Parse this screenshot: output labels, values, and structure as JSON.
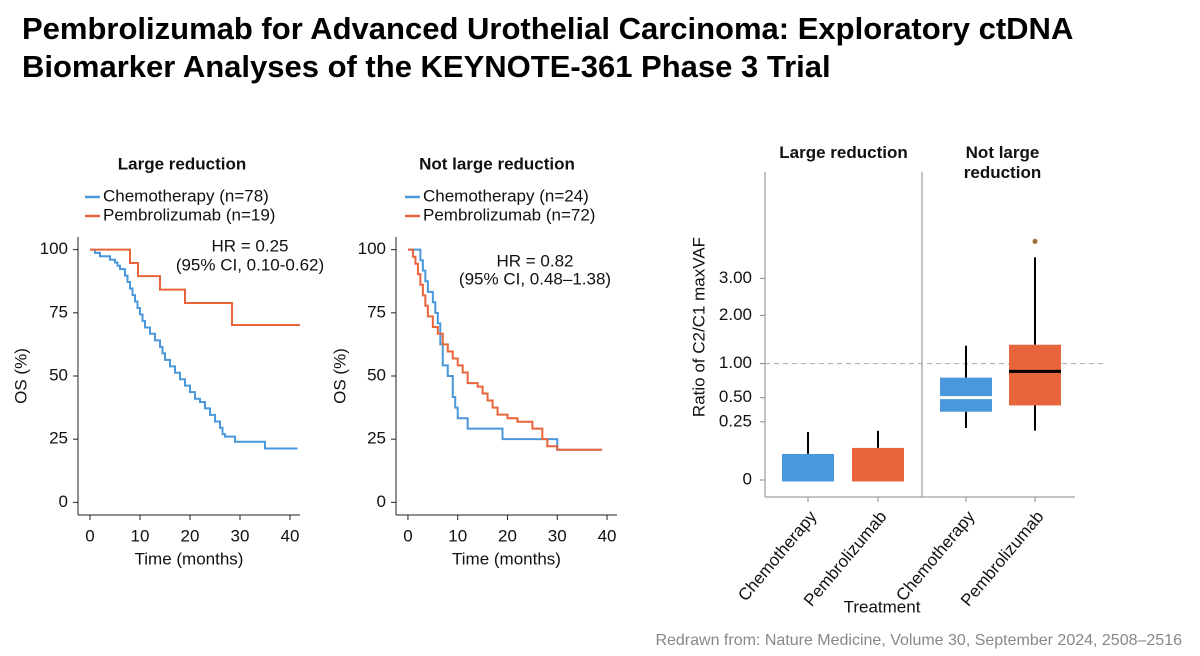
{
  "title": "Pembrolizumab for Advanced Urothelial Carcinoma: Exploratory ctDNA Biomarker Analyses of the KEYNOTE-361 Phase 3 Trial",
  "source": "Redrawn from: Nature Medicine, Volume 30, September 2024, 2508–2516",
  "chart_data": [
    {
      "type": "step",
      "title": "Large reduction",
      "annotations": [
        "HR = 0.25",
        "(95% CI, 0.10-0.62)"
      ],
      "xlabel": "Time (months)",
      "ylabel": "OS (%)",
      "xlim": [
        -2.4,
        42
      ],
      "ylim": [
        -5,
        105
      ],
      "xticks": [
        0,
        10,
        20,
        30,
        40
      ],
      "yticks": [
        0,
        25,
        50,
        75,
        100
      ],
      "series": [
        {
          "name": "Chemotherapy (n=78)",
          "color": "#4a98db",
          "x": [
            0,
            1,
            2,
            4,
            5,
            5.5,
            6,
            7,
            7.5,
            8,
            8.5,
            9,
            9.5,
            10,
            10.5,
            11,
            12,
            13,
            14,
            14.5,
            15,
            16,
            17,
            18,
            19,
            20,
            21,
            22,
            23,
            24,
            25,
            26,
            26.5,
            27,
            29,
            35,
            41.5
          ],
          "values": [
            100,
            98.7,
            97.4,
            96,
            94.9,
            93.6,
            92.3,
            89.7,
            87.2,
            84.6,
            82,
            79.5,
            76.9,
            74.4,
            71.8,
            69.2,
            66.7,
            64.1,
            61.5,
            59,
            56.4,
            53.8,
            51.3,
            48.7,
            46.2,
            43.6,
            41,
            39.7,
            37.2,
            34.6,
            32,
            29.5,
            27,
            26,
            24,
            21.3,
            21.3
          ]
        },
        {
          "name": "Pembrolizumab (n=19)",
          "color": "#e8643a",
          "x": [
            0,
            8,
            9.6,
            14,
            19,
            28.4,
            42
          ],
          "values": [
            100,
            94.7,
            89.5,
            84.2,
            78.9,
            70.2,
            70.2
          ]
        }
      ]
    },
    {
      "type": "step",
      "title": "Not large reduction",
      "annotations": [
        "HR = 0.82",
        "(95% CI, 0.48–1.38)"
      ],
      "xlabel": "Time (months)",
      "ylabel": "OS (%)",
      "xlim": [
        -2.4,
        42
      ],
      "ylim": [
        -5,
        105
      ],
      "xticks": [
        0,
        10,
        20,
        30,
        40
      ],
      "yticks": [
        0,
        25,
        50,
        75,
        100
      ],
      "series": [
        {
          "name": "Chemotherapy (n=24)",
          "color": "#4a98db",
          "x": [
            0,
            2.5,
            3,
            3.5,
            4,
            5,
            5.5,
            6,
            6.5,
            7,
            8,
            9,
            9.5,
            10,
            12,
            19,
            30,
            39
          ],
          "values": [
            100,
            95.8,
            91.7,
            87.5,
            83.3,
            79.2,
            75,
            70.8,
            62.5,
            54.2,
            50,
            41.7,
            37.5,
            33.3,
            29.2,
            25,
            20.8,
            20.8
          ]
        },
        {
          "name": "Pembrolizumab (n=72)",
          "color": "#e8643a",
          "x": [
            0,
            1,
            1.5,
            2,
            2.5,
            3,
            3.5,
            4,
            5,
            6,
            7,
            8,
            9,
            10,
            11,
            12,
            14,
            15,
            16,
            17,
            18,
            20,
            22,
            25,
            27,
            28,
            30,
            39
          ],
          "values": [
            100,
            97.2,
            94.4,
            90.3,
            86.1,
            81.9,
            77.8,
            73.6,
            69.4,
            66.7,
            62.5,
            59.7,
            56.9,
            54.2,
            51.4,
            47.2,
            45.8,
            43.1,
            40.3,
            37.5,
            34.7,
            33.3,
            31.9,
            29.2,
            25,
            22.2,
            20.8,
            20.8
          ]
        }
      ]
    },
    {
      "type": "box",
      "scale": "sqrt",
      "ylabel": "Ratio of C2/C1 maxVAF",
      "xlabel": "Treatment",
      "ylim": [
        0,
        7
      ],
      "yticks": [
        0,
        {
          "value": 0.25,
          "label": "0.25"
        },
        {
          "value": 0.5,
          "label": "0.50"
        },
        {
          "value": 1,
          "label": "1.00"
        },
        {
          "value": 2,
          "label": "2.00"
        },
        {
          "value": 3,
          "label": "3.00"
        }
      ],
      "reference_line": 1,
      "panels": [
        {
          "title": "Large reduction",
          "categories": [
            "Chemotherapy",
            "Pembrolizumab"
          ],
          "boxes": [
            {
              "color": "#4a98db",
              "median_color": "#4a98db",
              "whisker_low": 0,
              "q1": 0,
              "median": 0,
              "q3": 0.05,
              "whisker_high": 0.17
            },
            {
              "color": "#e8643a",
              "median_color": "#e8643a",
              "whisker_low": 0,
              "q1": 0,
              "median": 0,
              "q3": 0.076,
              "whisker_high": 0.178
            }
          ]
        },
        {
          "title": "Not large reduction",
          "categories": [
            "Chemotherapy",
            "Pembrolizumab"
          ],
          "boxes": [
            {
              "color": "#4a98db",
              "median_color": "#ffffff",
              "whisker_low": 0.2,
              "q1": 0.344,
              "median": 0.5,
              "q3": 0.773,
              "whisker_high": 1.33
            },
            {
              "color": "#e8643a",
              "median_color": "#000000",
              "whisker_low": 0.18,
              "q1": 0.41,
              "median": 0.87,
              "q3": 1.35,
              "whisker_high": 3.66,
              "outliers": [
                4.2
              ]
            }
          ]
        }
      ]
    }
  ]
}
